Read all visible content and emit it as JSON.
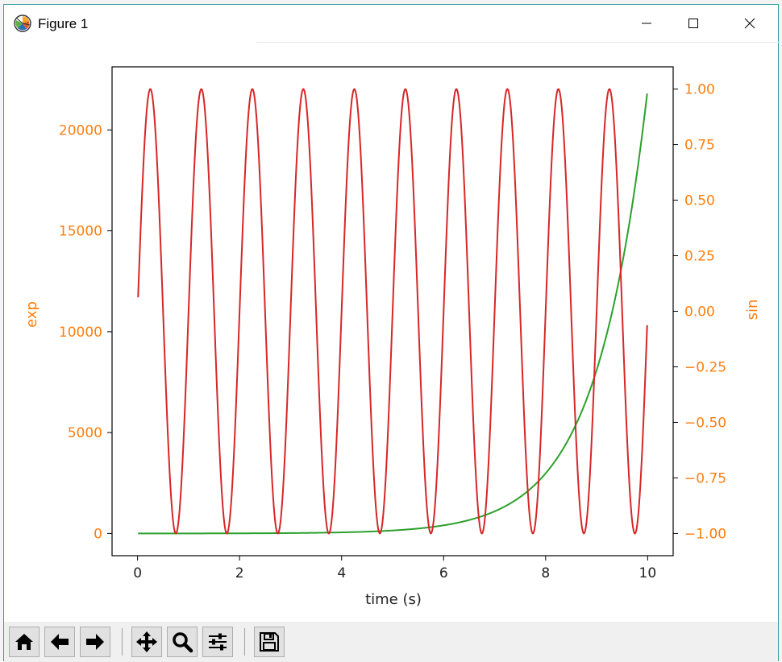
{
  "window": {
    "title": "Figure 1",
    "controls": [
      "minimize",
      "maximize",
      "close"
    ]
  },
  "toolbar": {
    "buttons": [
      "home-icon",
      "back-icon",
      "forward-icon",
      "pan-icon",
      "zoom-icon",
      "configure-subplots-icon",
      "save-icon"
    ]
  },
  "colors": {
    "exp_series": "#2ca02c",
    "sin_series": "#d62728",
    "tick_label": "#ff7f0e",
    "axis": "#000000"
  },
  "chart_data": {
    "type": "line",
    "xlabel": "time (s)",
    "ylabel_left": "exp",
    "ylabel_right": "sin",
    "xlim": [
      -0.5,
      10.5
    ],
    "ylim_left": [
      -1101.3,
      23128.4
    ],
    "ylim_right": [
      -1.1,
      1.1
    ],
    "x_ticks": [
      0,
      2,
      4,
      6,
      8,
      10
    ],
    "y_ticks_left": [
      0,
      5000,
      10000,
      15000,
      20000
    ],
    "y_ticks_right": [
      -1.0,
      -0.75,
      -0.5,
      -0.25,
      0.0,
      0.25,
      0.5,
      0.75,
      1.0
    ],
    "y_tick_labels_right": [
      "−1.00",
      "−0.75",
      "−0.50",
      "−0.25",
      "0.00",
      "0.25",
      "0.50",
      "0.75",
      "1.00"
    ],
    "grid": false,
    "series": [
      {
        "axis": "left",
        "color": "#2ca02c",
        "x": [
          0.01,
          1,
          2,
          3,
          4,
          5,
          6,
          6.5,
          7,
          7.5,
          8,
          8.5,
          9,
          9.25,
          9.5,
          9.75,
          9.99
        ],
        "y": [
          1.0,
          2.7,
          7.4,
          20.1,
          54.6,
          148.4,
          403.4,
          665.1,
          1096.6,
          1808.0,
          2981.0,
          4914.8,
          8103.1,
          10404.6,
          13359.7,
          17154.2,
          21807.2
        ]
      },
      {
        "axis": "right",
        "color": "#d62728",
        "x": [
          0.01,
          0.25,
          0.75,
          1.25,
          1.75,
          2.25,
          2.75,
          3.25,
          3.75,
          4.25,
          4.75,
          5.25,
          5.75,
          6.25,
          6.75,
          7.25,
          7.75,
          8.25,
          8.75,
          9.25,
          9.75,
          9.99
        ],
        "y": [
          0.06,
          1.0,
          -1.0,
          1.0,
          -1.0,
          1.0,
          -1.0,
          1.0,
          -1.0,
          1.0,
          -1.0,
          1.0,
          -1.0,
          1.0,
          -1.0,
          1.0,
          -1.0,
          1.0,
          -1.0,
          1.0,
          -1.0,
          -0.06
        ]
      }
    ]
  }
}
